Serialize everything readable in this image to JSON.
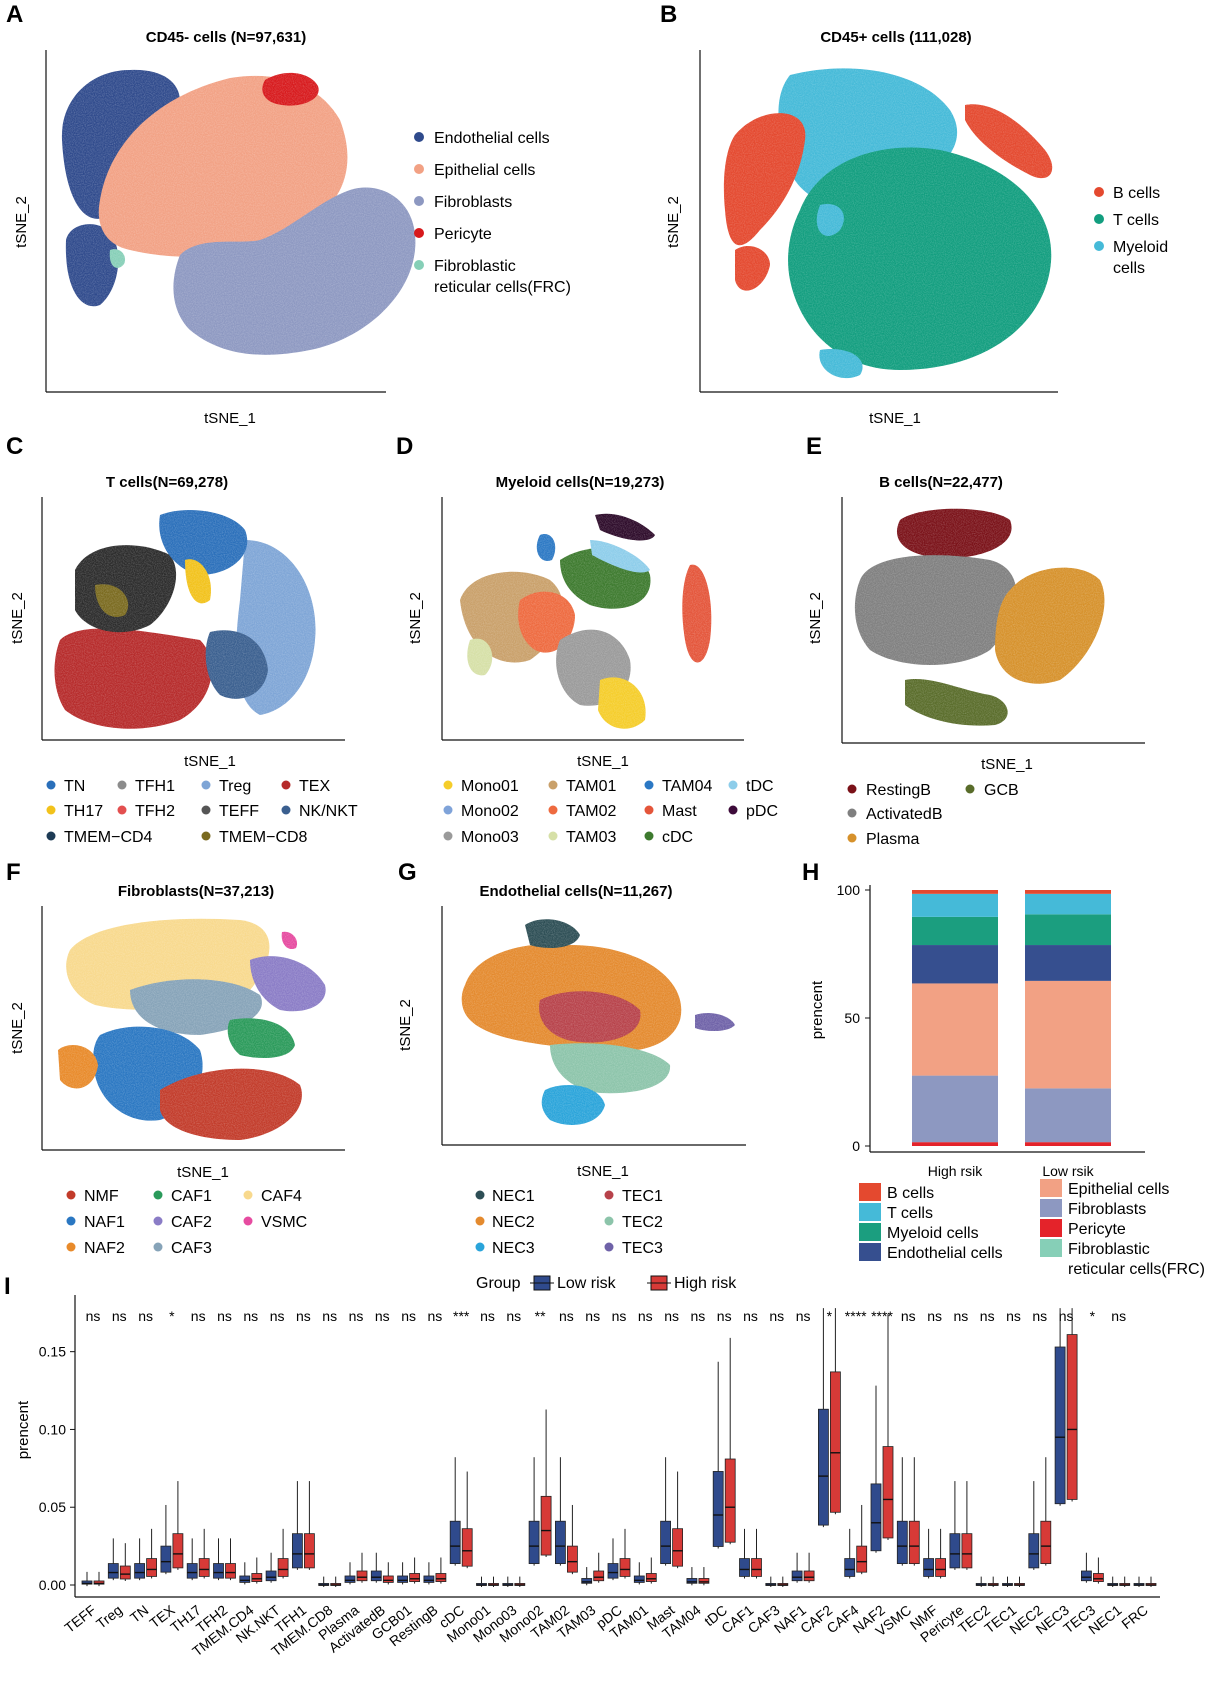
{
  "figure": {
    "panels": [
      {
        "id": "A",
        "label": "A",
        "title": "CD45- cells (N=97,631)",
        "xlabel": "tSNE_1",
        "ylabel": "tSNE_2"
      },
      {
        "id": "B",
        "label": "B",
        "title": "CD45+ cells (111,028)",
        "xlabel": "tSNE_1",
        "ylabel": "tSNE_2"
      },
      {
        "id": "C",
        "label": "C",
        "title": "T cells(N=69,278)",
        "xlabel": "tSNE_1",
        "ylabel": "tSNE_2"
      },
      {
        "id": "D",
        "label": "D",
        "title": "Myeloid cells(N=19,273)",
        "xlabel": "tSNE_1",
        "ylabel": "tSNE_2"
      },
      {
        "id": "E",
        "label": "E",
        "title": "B cells(N=22,477)",
        "xlabel": "tSNE_1",
        "ylabel": "tSNE_2"
      },
      {
        "id": "F",
        "label": "F",
        "title": "Fibroblasts(N=37,213)",
        "xlabel": "tSNE_1",
        "ylabel": "tSNE_2"
      },
      {
        "id": "G",
        "label": "G",
        "title": "Endothelial cells(N=11,267)",
        "xlabel": "tSNE_1",
        "ylabel": "tSNE_2"
      }
    ]
  },
  "legends": {
    "A": [
      {
        "label": "Endothelial cells",
        "color": "#2f4a8c"
      },
      {
        "label": "Epithelial cells",
        "color": "#f2a184"
      },
      {
        "label": "Fibroblasts",
        "color": "#8d98c1"
      },
      {
        "label": "Pericyte",
        "color": "#d7191c"
      },
      {
        "label": "Fibroblastic",
        "label2": "reticular cells(FRC)",
        "color": "#86cfb7"
      }
    ],
    "B": [
      {
        "label": "B cells",
        "color": "#e4492f"
      },
      {
        "label": "T cells",
        "color": "#129e7f"
      },
      {
        "label": "Myeloid",
        "label2": "cells",
        "color": "#45bad8"
      }
    ],
    "C": [
      {
        "label": "TN",
        "color": "#2a6fba"
      },
      {
        "label": "TFH1",
        "color": "#8c8c8c"
      },
      {
        "label": "Treg",
        "color": "#7ea5d6"
      },
      {
        "label": "TEX",
        "color": "#b62a2a"
      },
      {
        "label": "TH17",
        "color": "#f2c21b"
      },
      {
        "label": "TFH2",
        "color": "#e34f4f"
      },
      {
        "label": "TEFF",
        "color": "#555555"
      },
      {
        "label": "NK/NKT",
        "color": "#3a5f8f"
      },
      {
        "label": "TMEM−CD4",
        "color": "#1d3b55"
      },
      {
        "label": "TMEM−CD8",
        "color": "#7a6a1f"
      }
    ],
    "D": [
      {
        "label": "Mono01",
        "color": "#f5cd2a"
      },
      {
        "label": "TAM01",
        "color": "#c9a06a"
      },
      {
        "label": "TAM04",
        "color": "#2b78c4"
      },
      {
        "label": "tDC",
        "color": "#8dcdea"
      },
      {
        "label": "Mono02",
        "color": "#7fa3d9"
      },
      {
        "label": "TAM02",
        "color": "#ee6a3f"
      },
      {
        "label": "Mast",
        "color": "#e4553a"
      },
      {
        "label": "pDC",
        "color": "#3d0b3a"
      },
      {
        "label": "Mono03",
        "color": "#9a9a9a"
      },
      {
        "label": "TAM03",
        "color": "#d6e0a7"
      },
      {
        "label": "cDC",
        "color": "#3d7a2e"
      }
    ],
    "E": [
      {
        "label": "RestingB",
        "color": "#7a1118"
      },
      {
        "label": "GCB",
        "color": "#596c2a"
      },
      {
        "label": "ActivatedB",
        "color": "#7f7f7f"
      },
      {
        "label": "Plasma",
        "color": "#d6912b"
      }
    ],
    "F": [
      {
        "label": "NMF",
        "color": "#c23b2a"
      },
      {
        "label": "CAF1",
        "color": "#2a9a5a"
      },
      {
        "label": "CAF4",
        "color": "#f8d98d"
      },
      {
        "label": "NAF1",
        "color": "#2a77c2"
      },
      {
        "label": "CAF2",
        "color": "#8a7cc6"
      },
      {
        "label": "VSMC",
        "color": "#e64ba0"
      },
      {
        "label": "NAF2",
        "color": "#e88a2a"
      },
      {
        "label": "CAF3",
        "color": "#86a3b8"
      }
    ],
    "G": [
      {
        "label": "NEC1",
        "color": "#2d4e55"
      },
      {
        "label": "TEC1",
        "color": "#b7424a"
      },
      {
        "label": "NEC2",
        "color": "#e48a2e"
      },
      {
        "label": "TEC2",
        "color": "#8cc4aa"
      },
      {
        "label": "NEC3",
        "color": "#2aa4da"
      },
      {
        "label": "TEC3",
        "color": "#6f62a8"
      }
    ]
  },
  "chart_data": [
    {
      "panel": "H",
      "label": "H",
      "type": "bar",
      "stacked": true,
      "categories": [
        "High rsik",
        "Low rsik"
      ],
      "ylabel": "prencent",
      "ylim": [
        0,
        100
      ],
      "yticks": [
        "0",
        "50",
        "100"
      ],
      "series": [
        {
          "name": "Pericyte",
          "color": "#e4232a",
          "values": [
            1.5,
            1.5
          ]
        },
        {
          "name": "Fibroblasts",
          "color": "#8d98c1",
          "values": [
            26,
            21
          ]
        },
        {
          "name": "Epithelial cells",
          "color": "#f2a184",
          "values": [
            36,
            42
          ]
        },
        {
          "name": "Endothelial cells",
          "color": "#364f8f",
          "values": [
            15,
            14
          ]
        },
        {
          "name": "Myeloid cells",
          "color": "#1b9e7f",
          "values": [
            11,
            12
          ]
        },
        {
          "name": "T cells",
          "color": "#45bad8",
          "values": [
            9,
            8
          ]
        },
        {
          "name": "B cells",
          "color": "#e4492f",
          "values": [
            1.5,
            1.5
          ]
        }
      ],
      "legend": [
        {
          "name": "B cells",
          "color": "#e4492f"
        },
        {
          "name": "Epithelial cells",
          "color": "#f2a184"
        },
        {
          "name": "T cells",
          "color": "#45bad8"
        },
        {
          "name": "Fibroblasts",
          "color": "#8d98c1"
        },
        {
          "name": "Myeloid cells",
          "color": "#1b9e7f"
        },
        {
          "name": "Pericyte",
          "color": "#e4232a"
        },
        {
          "name": "Endothelial cells",
          "color": "#364f8f"
        },
        {
          "name": "Fibroblastic",
          "name2": "reticular cells(FRC)",
          "color": "#86cfb7"
        }
      ]
    },
    {
      "panel": "I",
      "label": "I",
      "type": "box",
      "title": "",
      "legend_title": "Group",
      "groups": [
        {
          "name": "Low risk",
          "color": "#2f4a8c"
        },
        {
          "name": "High risk",
          "color": "#d73a37"
        }
      ],
      "ylabel": "prencent",
      "ylim": [
        0,
        0.18
      ],
      "yticks": [
        "0.00",
        "0.05",
        "0.10",
        "0.15"
      ],
      "categories": [
        "TEFF",
        "Treg",
        "TN",
        "TEX",
        "TH17",
        "TFH2",
        "TMEM.CD4",
        "NK.NKT",
        "TFH1",
        "TMEM.CD8",
        "Plasma",
        "ActivatedB",
        "GCB01",
        "RestingB",
        "cDC",
        "Mono01",
        "Mono03",
        "Mono02",
        "TAM02",
        "TAM03",
        "pDC",
        "TAM01",
        "Mast",
        "TAM04",
        "tDC",
        "CAF1",
        "CAF3",
        "NAF1",
        "CAF2",
        "CAF4",
        "NAF2",
        "VSMC",
        "NMF",
        "Pericyte",
        "TEC2",
        "TEC1",
        "NEC2",
        "NEC3",
        "TEC3",
        "NEC1",
        "FRC"
      ],
      "significance": [
        "ns",
        "ns",
        "ns",
        "*",
        "ns",
        "ns",
        "ns",
        "ns",
        "ns",
        "ns",
        "ns",
        "ns",
        "ns",
        "ns",
        "***",
        "ns",
        "ns",
        "**",
        "ns",
        "ns",
        "ns",
        "ns",
        "ns",
        "ns",
        "ns",
        "ns",
        "ns",
        "ns",
        "*",
        "****",
        "****",
        "ns",
        "ns",
        "ns",
        "ns",
        "ns",
        "ns",
        "ns",
        "*",
        "ns",
        ""
      ],
      "low_risk_median": [
        0.001,
        0.008,
        0.008,
        0.015,
        0.008,
        0.008,
        0.003,
        0.005,
        0.02,
        0.0,
        0.003,
        0.005,
        0.003,
        0.003,
        0.025,
        0.0,
        0.0,
        0.025,
        0.025,
        0.002,
        0.008,
        0.003,
        0.025,
        0.002,
        0.045,
        0.01,
        0.0,
        0.005,
        0.07,
        0.01,
        0.04,
        0.025,
        0.01,
        0.02,
        0.0,
        0.0,
        0.02,
        0.095,
        0.005,
        0.0,
        0.0
      ],
      "high_risk_median": [
        0.001,
        0.007,
        0.01,
        0.02,
        0.01,
        0.008,
        0.004,
        0.01,
        0.02,
        0.0,
        0.005,
        0.003,
        0.004,
        0.004,
        0.022,
        0.0,
        0.0,
        0.035,
        0.015,
        0.005,
        0.01,
        0.004,
        0.022,
        0.002,
        0.05,
        0.01,
        0.0,
        0.005,
        0.085,
        0.015,
        0.055,
        0.025,
        0.01,
        0.02,
        0.0,
        0.0,
        0.025,
        0.1,
        0.004,
        0.0,
        0.0
      ]
    }
  ]
}
